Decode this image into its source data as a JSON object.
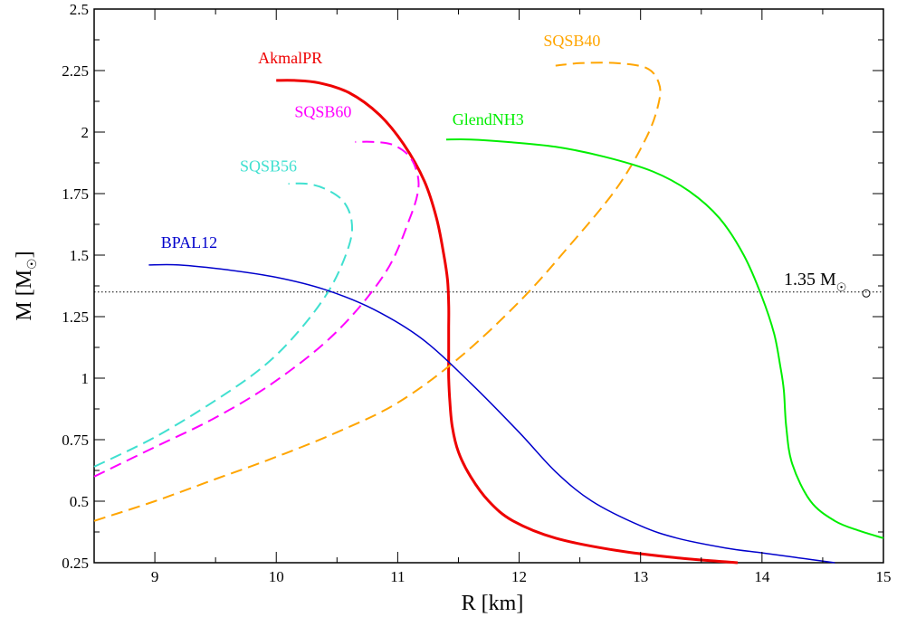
{
  "chart_data": {
    "type": "line",
    "xlabel": "R [km]",
    "ylabel": "M [M",
    "ylabel_sub": "☉",
    "ylabel_close": "]",
    "xlim": [
      8.5,
      15
    ],
    "ylim": [
      0.25,
      2.5
    ],
    "xticks": [
      9,
      10,
      11,
      12,
      13,
      14,
      15
    ],
    "yticks": [
      0.25,
      0.5,
      0.75,
      1,
      1.25,
      1.5,
      1.75,
      2,
      2.25,
      2.5
    ],
    "ytick_labels": [
      "0.25",
      "0.5",
      "0.75",
      "1",
      "1.25",
      "1.5",
      "1.75",
      "2",
      "2.25",
      "2.5"
    ],
    "reference_line": {
      "y": 1.35,
      "label": "1.35 M",
      "label_sub": "☉"
    },
    "grid": false,
    "series": [
      {
        "name": "AkmalPR",
        "color": "#ee0000",
        "dash": "solid",
        "width": 3,
        "label_at": [
          9.85,
          2.28
        ],
        "x": [
          13.8,
          13.3,
          12.8,
          12.3,
          11.95,
          11.75,
          11.6,
          11.5,
          11.45,
          11.43,
          11.42,
          11.42,
          11.42,
          11.42,
          11.41,
          11.38,
          11.32,
          11.22,
          11.05,
          10.85,
          10.6,
          10.35,
          10.15,
          10.0
        ],
        "y": [
          0.25,
          0.27,
          0.3,
          0.35,
          0.42,
          0.5,
          0.6,
          0.7,
          0.8,
          0.9,
          1.0,
          1.1,
          1.2,
          1.3,
          1.4,
          1.5,
          1.65,
          1.8,
          1.95,
          2.07,
          2.16,
          2.2,
          2.21,
          2.21
        ]
      },
      {
        "name": "SQSB40",
        "color": "#ffa500",
        "dash": "dashed",
        "width": 2,
        "label_at": [
          12.2,
          2.35
        ],
        "x": [
          8.5,
          9.0,
          9.5,
          10.0,
          10.5,
          11.0,
          11.5,
          12.0,
          12.4,
          12.8,
          13.05,
          13.15,
          13.15,
          13.05,
          12.8,
          12.5,
          12.3
        ],
        "y": [
          0.42,
          0.5,
          0.59,
          0.68,
          0.78,
          0.9,
          1.08,
          1.31,
          1.53,
          1.77,
          1.98,
          2.12,
          2.2,
          2.26,
          2.28,
          2.28,
          2.27
        ]
      },
      {
        "name": "SQSB60",
        "color": "#ff00ff",
        "dash": "dashed",
        "width": 2,
        "label_at": [
          10.15,
          2.06
        ],
        "x": [
          8.5,
          9.0,
          9.5,
          10.0,
          10.5,
          10.9,
          11.1,
          11.17,
          11.15,
          11.08,
          10.95,
          10.8,
          10.65
        ],
        "y": [
          0.6,
          0.72,
          0.84,
          0.99,
          1.19,
          1.43,
          1.65,
          1.77,
          1.85,
          1.91,
          1.95,
          1.96,
          1.96
        ]
      },
      {
        "name": "SQSB56",
        "color": "#40e0d0",
        "dash": "dashed",
        "width": 2,
        "label_at": [
          9.7,
          1.84
        ],
        "x": [
          8.5,
          9.0,
          9.5,
          9.9,
          10.2,
          10.45,
          10.6,
          10.62,
          10.55,
          10.4,
          10.25,
          10.1
        ],
        "y": [
          0.64,
          0.76,
          0.91,
          1.05,
          1.2,
          1.37,
          1.54,
          1.64,
          1.72,
          1.77,
          1.79,
          1.79
        ]
      },
      {
        "name": "BPAL12",
        "color": "#0000cc",
        "dash": "solid",
        "width": 1.5,
        "label_at": [
          9.05,
          1.53
        ],
        "x": [
          14.6,
          14.3,
          14.0,
          13.7,
          13.3,
          13.0,
          12.6,
          12.3,
          12.0,
          11.6,
          11.2,
          10.8,
          10.4,
          10.0,
          9.6,
          9.2,
          8.95
        ],
        "y": [
          0.25,
          0.27,
          0.29,
          0.31,
          0.35,
          0.4,
          0.5,
          0.62,
          0.78,
          0.98,
          1.16,
          1.28,
          1.36,
          1.41,
          1.44,
          1.46,
          1.46
        ]
      },
      {
        "name": "GlendNH3",
        "color": "#00ee00",
        "dash": "solid",
        "width": 2,
        "label_at": [
          11.45,
          2.03
        ],
        "x": [
          15.0,
          14.8,
          14.6,
          14.4,
          14.25,
          14.2,
          14.18,
          14.15,
          14.1,
          14.0,
          13.85,
          13.65,
          13.4,
          13.1,
          12.7,
          12.3,
          11.9,
          11.6,
          11.4
        ],
        "y": [
          0.35,
          0.38,
          0.42,
          0.5,
          0.65,
          0.8,
          0.95,
          1.05,
          1.18,
          1.33,
          1.5,
          1.65,
          1.76,
          1.84,
          1.9,
          1.94,
          1.96,
          1.97,
          1.97
        ]
      }
    ]
  }
}
